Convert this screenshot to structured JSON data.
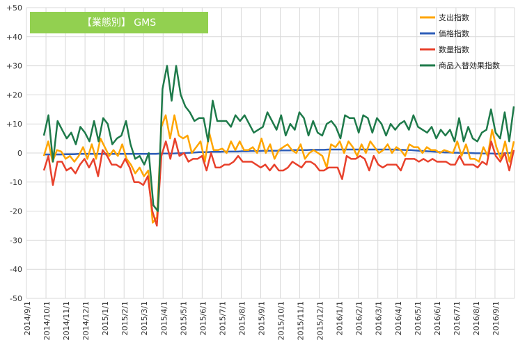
{
  "chart_data": {
    "type": "line",
    "title": "【業態別】 GMS",
    "title_box_color": "#92D050",
    "ylim": [
      -50,
      50
    ],
    "yticks": [
      "+50",
      "+40",
      "+30",
      "+20",
      "+10",
      "0",
      "-10",
      "-20",
      "-30",
      "-40",
      "-50"
    ],
    "ytick_values": [
      50,
      40,
      30,
      20,
      10,
      0,
      -10,
      -20,
      -30,
      -40,
      -50
    ],
    "xticks": [
      "2014/9/1",
      "2014/10/1",
      "2014/11/1",
      "2014/12/1",
      "2015/1/1",
      "2015/2/1",
      "2015/3/1",
      "2015/4/1",
      "2015/5/1",
      "2015/6/1",
      "2015/7/1",
      "2015/8/1",
      "2015/9/1",
      "2015/10/1",
      "2015/11/1",
      "2015/12/1",
      "2016/1/1",
      "2016/2/1",
      "2016/3/1",
      "2016/4/1",
      "2016/5/1",
      "2016/6/1",
      "2016/7/1",
      "2016/8/1",
      "2016/9/1"
    ],
    "grid": true,
    "legend_position": "top-right",
    "series": [
      {
        "name": "支出指数",
        "color": "#FFA500",
        "values": [
          -1,
          4,
          -3,
          1,
          0.5,
          -2,
          -1,
          -3,
          -1,
          2,
          -2,
          3,
          -2,
          5,
          2,
          -1,
          1,
          -1,
          3,
          -2,
          -4,
          -7,
          -5,
          -8,
          -6,
          -24,
          -22,
          9,
          13,
          5,
          13,
          6,
          5,
          6,
          0,
          2,
          4,
          -3,
          7,
          1,
          1,
          1.5,
          0,
          4,
          1,
          4,
          1,
          1,
          2,
          0,
          5,
          0,
          3,
          -2,
          1,
          2,
          3,
          1,
          0,
          3,
          -2,
          0,
          1,
          0,
          -1,
          -5,
          3,
          2,
          4,
          0,
          4,
          2,
          -1,
          3,
          0,
          4,
          2,
          0,
          1,
          3,
          0,
          2,
          1,
          -1,
          3,
          2,
          2,
          0,
          2,
          1,
          1,
          0,
          1,
          0.5,
          0,
          4,
          -1,
          3,
          -2,
          -2,
          -3,
          2,
          -1,
          8,
          2,
          -2,
          4,
          -3,
          4
        ]
      },
      {
        "name": "価格指数",
        "color": "#2E5EB8",
        "values": [
          -0.5,
          -0.5,
          -0.5,
          -0.5,
          -0.5,
          -0.4,
          -0.4,
          -0.4,
          -0.3,
          -0.3,
          -0.3,
          -0.3,
          -0.3,
          -0.3,
          -0.3,
          -0.3,
          -0.3,
          -0.3,
          -0.3,
          -0.3,
          -0.3,
          -0.3,
          -0.3,
          -0.3,
          -0.3,
          -0.3,
          -0.3,
          -0.2,
          -0.2,
          -0.2,
          -0.2,
          -0.1,
          -0.1,
          0,
          0.1,
          0.2,
          0.3,
          0.3,
          0.3,
          0.4,
          0.4,
          0.4,
          0.5,
          0.5,
          0.5,
          0.5,
          0.6,
          0.6,
          0.7,
          0.7,
          0.7,
          0.8,
          0.8,
          0.8,
          0.8,
          0.9,
          0.9,
          0.9,
          1,
          1,
          1,
          1,
          1.1,
          1.1,
          1.1,
          1.1,
          1.2,
          1.2,
          1.2,
          1.2,
          1.2,
          1.2,
          1.2,
          1.2,
          1.2,
          1.2,
          1.2,
          1.2,
          1.2,
          1.2,
          1.2,
          1.2,
          1.1,
          1.1,
          1,
          1,
          0.9,
          0.8,
          0.7,
          0.6,
          0.5,
          0.4,
          0.3,
          0.2,
          0.2,
          0.1,
          0.1,
          0,
          0,
          0,
          -0.1,
          -0.1,
          -0.2,
          -0.2,
          -0.2,
          -0.3,
          -0.2,
          -0.1,
          0,
          0.2
        ]
      },
      {
        "name": "数量指数",
        "color": "#E8412C",
        "values": [
          -6,
          -1,
          -11,
          -3,
          -3,
          -6,
          -5,
          -7,
          -4,
          -2,
          -5,
          -2,
          -8,
          1,
          -1,
          -4,
          -4,
          -5,
          -2,
          -5,
          -10,
          -10,
          -11,
          -8,
          -20,
          -25,
          -1,
          4,
          -2,
          5,
          -1,
          0,
          -3,
          -2,
          -2,
          -1,
          -6,
          0,
          -5,
          -5,
          -4,
          -4,
          -3,
          -1,
          -3,
          -3,
          -3,
          -4,
          -5,
          -4,
          -6,
          -4,
          -6,
          -6,
          -5,
          -3,
          -4,
          -5,
          -3,
          -3,
          -4,
          -6,
          -6,
          -5,
          -5,
          -5,
          -9,
          -1,
          -2,
          -2,
          -1,
          -2,
          -6,
          -1,
          -4,
          -5,
          -4,
          -4,
          -4,
          -6,
          -2,
          -2,
          -2,
          -3,
          -2,
          -3,
          -2,
          -3,
          -3,
          -3,
          -4,
          -4,
          -1,
          -4,
          -4,
          -4,
          -5,
          -3,
          -4,
          4,
          -1,
          -3,
          0,
          -6,
          1
        ]
      },
      {
        "name": "商品入替効果指数",
        "color": "#1E7A4A",
        "values": [
          6,
          13,
          -3,
          11,
          8,
          5,
          7,
          3,
          9,
          7,
          4,
          11,
          4,
          12,
          10,
          3,
          5,
          6,
          11,
          3,
          -2,
          -1,
          -4,
          0,
          -18,
          -20,
          22,
          30,
          18,
          30,
          20,
          16,
          14,
          11,
          12,
          12,
          4,
          18,
          11,
          11,
          11,
          9,
          13,
          11,
          13,
          10,
          7,
          8,
          9,
          14,
          11,
          8,
          13,
          6,
          10,
          8,
          14,
          12,
          6,
          11,
          7,
          6,
          10,
          11,
          9,
          5,
          13,
          12,
          12,
          7,
          13,
          12,
          7,
          12,
          10,
          6,
          10,
          8,
          10,
          11,
          8,
          13,
          9,
          8,
          7,
          9,
          5,
          8,
          6,
          8,
          4,
          12,
          4,
          9,
          5,
          4,
          7,
          8,
          15,
          7,
          5,
          14,
          4,
          16
        ]
      }
    ]
  }
}
